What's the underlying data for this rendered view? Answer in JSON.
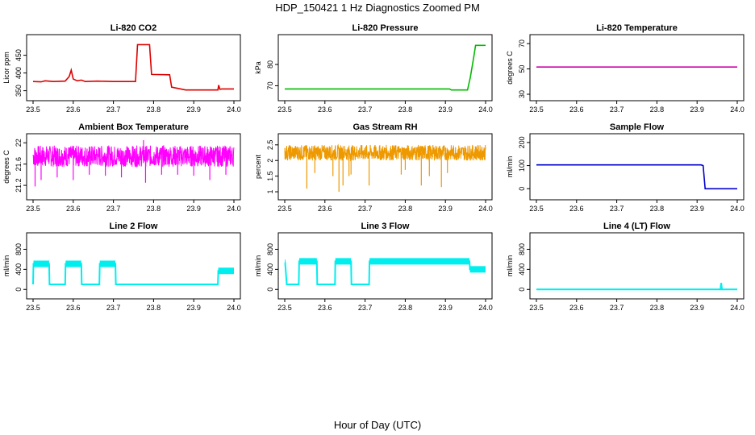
{
  "figure": {
    "title": "HDP_150421  1 Hz Diagnostics Zoomed PM",
    "xlabel": "Hour of Day (UTC)"
  },
  "chart_data": [
    {
      "type": "line",
      "title": "Li-820 CO2",
      "ylabel": "Licor ppm",
      "color": "#dd0000",
      "xlim": [
        23.5,
        24.0
      ],
      "ylim": [
        340,
        490
      ],
      "x_ticks": [
        "23.5",
        "23.6",
        "23.7",
        "23.8",
        "23.9",
        "24.0"
      ],
      "y_ticks": [
        350,
        400,
        450
      ],
      "series": [
        {
          "x": [
            23.5,
            23.52,
            23.53,
            23.55,
            23.58,
            23.59,
            23.595,
            23.6,
            23.61,
            23.62,
            23.63,
            23.66,
            23.7,
            23.755,
            23.76,
            23.79,
            23.795,
            23.84,
            23.845,
            23.88,
            23.96,
            23.962,
            23.965,
            23.97,
            24.0
          ],
          "y": [
            376,
            375,
            378,
            376,
            377,
            390,
            408,
            383,
            378,
            380,
            376,
            377,
            376,
            376,
            480,
            480,
            396,
            395,
            360,
            352,
            352,
            366,
            354,
            355,
            355
          ]
        }
      ]
    },
    {
      "type": "line",
      "title": "Li-820 Pressure",
      "ylabel": "kPa",
      "color": "#00bb00",
      "xlim": [
        23.5,
        24.0
      ],
      "ylim": [
        66,
        91
      ],
      "x_ticks": [
        "23.5",
        "23.6",
        "23.7",
        "23.8",
        "23.9",
        "24.0"
      ],
      "y_ticks": [
        70,
        80
      ],
      "series": [
        {
          "x": [
            23.5,
            23.91,
            23.915,
            23.955,
            23.962,
            23.97,
            23.975,
            24.0
          ],
          "y": [
            68.5,
            68.5,
            68.0,
            68.0,
            74,
            83,
            89,
            89
          ]
        }
      ]
    },
    {
      "type": "line",
      "title": "Li-820 Temperature",
      "ylabel": "degrees C",
      "color": "#cc00aa",
      "xlim": [
        23.5,
        24.0
      ],
      "ylim": [
        30,
        72
      ],
      "x_ticks": [
        "23.5",
        "23.6",
        "23.7",
        "23.8",
        "23.9",
        "24.0"
      ],
      "y_ticks": [
        30,
        50,
        70
      ],
      "series": [
        {
          "x": [
            23.5,
            24.0
          ],
          "y": [
            51.5,
            51.5
          ]
        }
      ]
    },
    {
      "type": "line",
      "title": "Ambient Box Temperature",
      "ylabel": "degrees C",
      "color": "#ff00ff",
      "xlim": [
        23.5,
        24.0
      ],
      "ylim": [
        21.05,
        22.05
      ],
      "x_ticks": [
        "23.5",
        "23.6",
        "23.7",
        "23.8",
        "23.9",
        "24.0"
      ],
      "y_ticks": [
        21.2,
        21.6,
        22.0
      ],
      "series": [
        {
          "x": [
            23.5,
            24.0
          ],
          "y": [
            21.75,
            21.75
          ],
          "band_low": 21.55,
          "band_high": 21.95,
          "spikes": [
            [
              23.505,
              21.18
            ],
            [
              23.52,
              21.3
            ],
            [
              23.56,
              21.35
            ],
            [
              23.6,
              21.3
            ],
            [
              23.64,
              21.4
            ],
            [
              23.68,
              21.38
            ],
            [
              23.72,
              21.35
            ],
            [
              23.775,
              22.05
            ],
            [
              23.78,
              21.25
            ],
            [
              23.82,
              21.4
            ],
            [
              23.86,
              21.4
            ],
            [
              23.9,
              21.38
            ],
            [
              23.94,
              21.3
            ],
            [
              23.98,
              21.4
            ]
          ]
        }
      ]
    },
    {
      "type": "line",
      "title": "Gas Stream RH",
      "ylabel": "percent",
      "color": "#ee9900",
      "xlim": [
        23.5,
        24.0
      ],
      "ylim": [
        0.95,
        2.65
      ],
      "x_ticks": [
        "23.5",
        "23.6",
        "23.7",
        "23.8",
        "23.9",
        "24.0"
      ],
      "y_ticks": [
        1.0,
        1.5,
        2.0,
        2.5
      ],
      "series": [
        {
          "x": [
            23.5,
            24.0
          ],
          "y": [
            2.25,
            2.25
          ],
          "band_low": 2.0,
          "band_high": 2.5,
          "spikes": [
            [
              23.555,
              1.1
            ],
            [
              23.575,
              1.6
            ],
            [
              23.62,
              1.5
            ],
            [
              23.635,
              1.0
            ],
            [
              23.645,
              1.2
            ],
            [
              23.66,
              1.5
            ],
            [
              23.665,
              1.55
            ],
            [
              23.71,
              1.2
            ],
            [
              23.79,
              1.55
            ],
            [
              23.8,
              1.7
            ],
            [
              23.84,
              1.2
            ],
            [
              23.86,
              1.5
            ],
            [
              23.89,
              1.15
            ],
            [
              23.905,
              1.6
            ]
          ]
        }
      ]
    },
    {
      "type": "line",
      "title": "Sample Flow",
      "ylabel": "ml/min",
      "color": "#0000cc",
      "xlim": [
        23.5,
        24.0
      ],
      "ylim": [
        -20,
        210
      ],
      "x_ticks": [
        "23.5",
        "23.6",
        "23.7",
        "23.8",
        "23.9",
        "24.0"
      ],
      "y_ticks": [
        0,
        100,
        200
      ],
      "series": [
        {
          "x": [
            23.5,
            23.91,
            23.915,
            23.92,
            24.0
          ],
          "y": [
            103,
            103,
            100,
            0,
            0
          ]
        }
      ]
    },
    {
      "type": "line",
      "title": "Line 2 Flow",
      "ylabel": "ml/min",
      "color": "#00eeee",
      "xlim": [
        23.5,
        24.0
      ],
      "ylim": [
        -60,
        1000
      ],
      "x_ticks": [
        "23.5",
        "23.6",
        "23.7",
        "23.8",
        "23.9",
        "24.0"
      ],
      "y_ticks": [
        0,
        400,
        800
      ],
      "series": [
        {
          "x": [
            23.5,
            23.501,
            23.54,
            23.541,
            23.58,
            23.581,
            23.62,
            23.621,
            23.665,
            23.666,
            23.705,
            23.706,
            23.72,
            23.96,
            23.961,
            24.0
          ],
          "y": [
            100,
            510,
            510,
            100,
            100,
            510,
            510,
            100,
            100,
            510,
            510,
            100,
            100,
            100,
            370,
            370
          ]
        }
      ]
    },
    {
      "type": "line",
      "title": "Line 3 Flow",
      "ylabel": "ml/min",
      "color": "#00eeee",
      "xlim": [
        23.5,
        24.0
      ],
      "ylim": [
        -60,
        1000
      ],
      "x_ticks": [
        "23.5",
        "23.6",
        "23.7",
        "23.8",
        "23.9",
        "24.0"
      ],
      "y_ticks": [
        0,
        400,
        800
      ],
      "series": [
        {
          "x": [
            23.5,
            23.501,
            23.505,
            23.535,
            23.536,
            23.58,
            23.581,
            23.625,
            23.626,
            23.665,
            23.666,
            23.71,
            23.711,
            23.96,
            23.961,
            24.0
          ],
          "y": [
            530,
            530,
            100,
            100,
            560,
            560,
            100,
            100,
            560,
            560,
            100,
            100,
            560,
            560,
            400,
            400
          ]
        }
      ]
    },
    {
      "type": "line",
      "title": "Line 4 (LT) Flow",
      "ylabel": "ml/min",
      "color": "#00eeee",
      "xlim": [
        23.5,
        24.0
      ],
      "ylim": [
        -60,
        1000
      ],
      "x_ticks": [
        "23.5",
        "23.6",
        "23.7",
        "23.8",
        "23.9",
        "24.0"
      ],
      "y_ticks": [
        0,
        400,
        800
      ],
      "series": [
        {
          "x": [
            23.5,
            23.958,
            23.96,
            23.962,
            23.964,
            24.0
          ],
          "y": [
            0,
            0,
            130,
            0,
            0,
            0
          ]
        }
      ]
    }
  ]
}
